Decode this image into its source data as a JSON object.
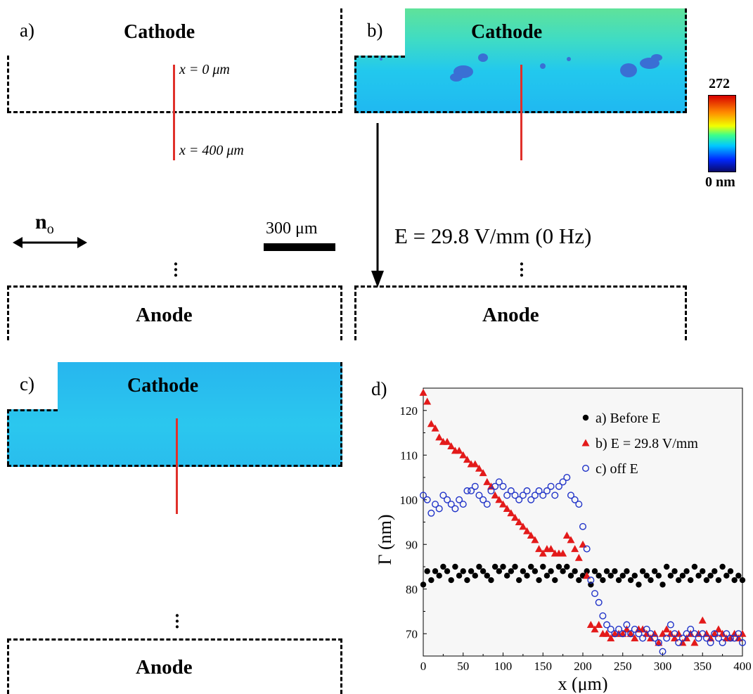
{
  "panels": {
    "a": {
      "letter": "a)",
      "cathode": "Cathode",
      "anode": "Anode",
      "x0": "x = 0 μm",
      "x400": "x = 400 μm",
      "director": "n",
      "director_sub": "o",
      "scalebar": "300 μm"
    },
    "b": {
      "letter": "b)",
      "cathode": "Cathode",
      "anode": "Anode",
      "field": "E = 29.8 V/mm (0 Hz)"
    },
    "c": {
      "letter": "c)",
      "cathode": "Cathode",
      "anode": "Anode"
    },
    "d": {
      "letter": "d)"
    }
  },
  "colorbar": {
    "max_label": "272",
    "min_label": "0 nm",
    "colors": [
      "#d70000",
      "#ff8a00",
      "#f2ff00",
      "#3cff8a",
      "#00c8ff",
      "#0028ff",
      "#0a0a6a"
    ]
  },
  "chart_data": {
    "type": "scatter",
    "xlabel": "x (μm)",
    "ylabel": "Γ (nm)",
    "xlim": [
      0,
      400
    ],
    "ylim": [
      65,
      125
    ],
    "xticks": [
      0,
      50,
      100,
      150,
      200,
      250,
      300,
      350,
      400
    ],
    "yticks": [
      70,
      80,
      90,
      100,
      110,
      120
    ],
    "legend_position": "top-right",
    "series": [
      {
        "name": "a) Before E",
        "marker": "filled-circle",
        "color": "#000000",
        "x": [
          0,
          5,
          10,
          15,
          20,
          25,
          30,
          35,
          40,
          45,
          50,
          55,
          60,
          65,
          70,
          75,
          80,
          85,
          90,
          95,
          100,
          105,
          110,
          115,
          120,
          125,
          130,
          135,
          140,
          145,
          150,
          155,
          160,
          165,
          170,
          175,
          180,
          185,
          190,
          195,
          200,
          205,
          210,
          215,
          220,
          225,
          230,
          235,
          240,
          245,
          250,
          255,
          260,
          265,
          270,
          275,
          280,
          285,
          290,
          295,
          300,
          305,
          310,
          315,
          320,
          325,
          330,
          335,
          340,
          345,
          350,
          355,
          360,
          365,
          370,
          375,
          380,
          385,
          390,
          395,
          400
        ],
        "y": [
          81,
          84,
          82,
          84,
          83,
          85,
          84,
          82,
          85,
          83,
          84,
          82,
          84,
          83,
          85,
          84,
          83,
          82,
          85,
          84,
          85,
          83,
          84,
          85,
          82,
          84,
          83,
          85,
          84,
          82,
          85,
          83,
          84,
          82,
          85,
          84,
          85,
          83,
          84,
          82,
          83,
          84,
          81,
          84,
          83,
          82,
          84,
          83,
          84,
          82,
          83,
          84,
          82,
          83,
          81,
          84,
          83,
          82,
          84,
          83,
          81,
          85,
          83,
          84,
          82,
          83,
          84,
          82,
          85,
          83,
          84,
          82,
          83,
          84,
          82,
          85,
          83,
          84,
          82,
          83,
          82
        ]
      },
      {
        "name": "b) E = 29.8 V/mm",
        "marker": "filled-triangle",
        "color": "#e31a1a",
        "x": [
          0,
          5,
          10,
          15,
          20,
          25,
          30,
          35,
          40,
          45,
          50,
          55,
          60,
          65,
          70,
          75,
          80,
          85,
          90,
          95,
          100,
          105,
          110,
          115,
          120,
          125,
          130,
          135,
          140,
          145,
          150,
          155,
          160,
          165,
          170,
          175,
          180,
          185,
          190,
          195,
          200,
          205,
          210,
          215,
          220,
          225,
          230,
          235,
          240,
          245,
          250,
          255,
          260,
          265,
          270,
          275,
          280,
          285,
          290,
          295,
          300,
          305,
          310,
          315,
          320,
          325,
          330,
          335,
          340,
          345,
          350,
          355,
          360,
          365,
          370,
          375,
          380,
          385,
          390,
          395,
          400
        ],
        "y": [
          124,
          122,
          117,
          116,
          114,
          113,
          113,
          112,
          111,
          111,
          110,
          109,
          108,
          108,
          107,
          106,
          104,
          103,
          101,
          100,
          99,
          98,
          97,
          96,
          95,
          94,
          93,
          92,
          91,
          89,
          88,
          89,
          89,
          88,
          88,
          88,
          92,
          91,
          89,
          87,
          90,
          83,
          72,
          71,
          72,
          70,
          70,
          69,
          70,
          70,
          70,
          71,
          70,
          69,
          71,
          71,
          70,
          69,
          70,
          68,
          70,
          71,
          70,
          69,
          70,
          68,
          69,
          70,
          68,
          70,
          73,
          70,
          69,
          70,
          71,
          70,
          69,
          69,
          70,
          69,
          70
        ]
      },
      {
        "name": "c) off E",
        "marker": "open-circle",
        "color": "#1f32c8",
        "x": [
          0,
          5,
          10,
          15,
          20,
          25,
          30,
          35,
          40,
          45,
          50,
          55,
          60,
          65,
          70,
          75,
          80,
          85,
          90,
          95,
          100,
          105,
          110,
          115,
          120,
          125,
          130,
          135,
          140,
          145,
          150,
          155,
          160,
          165,
          170,
          175,
          180,
          185,
          190,
          195,
          200,
          205,
          210,
          215,
          220,
          225,
          230,
          235,
          240,
          245,
          250,
          255,
          260,
          265,
          270,
          275,
          280,
          285,
          290,
          295,
          300,
          305,
          310,
          315,
          320,
          325,
          330,
          335,
          340,
          345,
          350,
          355,
          360,
          365,
          370,
          375,
          380,
          385,
          390,
          395,
          400
        ],
        "y": [
          101,
          100,
          97,
          99,
          98,
          101,
          100,
          99,
          98,
          100,
          99,
          102,
          102,
          103,
          101,
          100,
          99,
          102,
          103,
          104,
          103,
          101,
          102,
          101,
          100,
          101,
          102,
          100,
          101,
          102,
          101,
          102,
          103,
          101,
          103,
          104,
          105,
          101,
          100,
          99,
          94,
          89,
          82,
          79,
          77,
          74,
          72,
          71,
          70,
          71,
          70,
          72,
          70,
          71,
          70,
          69,
          71,
          70,
          69,
          68,
          66,
          69,
          72,
          70,
          68,
          69,
          70,
          71,
          70,
          69,
          70,
          69,
          68,
          70,
          69,
          68,
          70,
          69,
          69,
          70,
          68
        ]
      }
    ]
  }
}
